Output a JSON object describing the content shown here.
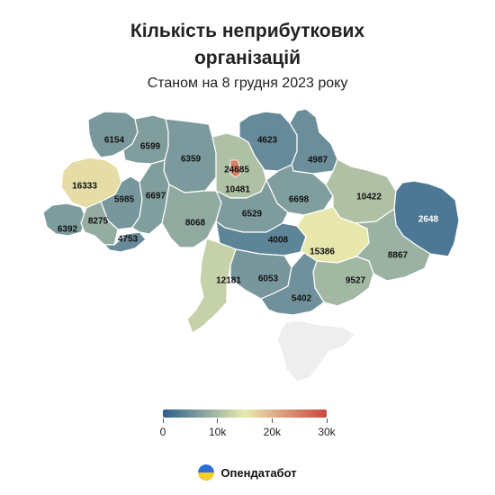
{
  "header": {
    "title_line1": "Кількість неприбуткових",
    "title_line2": "організацій",
    "subtitle": "Станом на 8 грудня 2023 року"
  },
  "legend": {
    "colors": [
      "#2c5f8f",
      "#e8ebaf",
      "#cc4540"
    ],
    "ticks": [
      {
        "label": "0",
        "value": 0
      },
      {
        "label": "10k",
        "value": 10000
      },
      {
        "label": "20k",
        "value": 20000
      },
      {
        "label": "30k",
        "value": 30000
      }
    ]
  },
  "map_data": {
    "metric_max": 30000,
    "no_data_color": "#eeeeee",
    "regions": [
      {
        "id": "volyn",
        "value": 6154,
        "label": "6154"
      },
      {
        "id": "rivne",
        "value": 6599,
        "label": "6599"
      },
      {
        "id": "zhytomyr",
        "value": 6359,
        "label": "6359"
      },
      {
        "id": "kyiv-oblast",
        "value": 10481,
        "label": "10481"
      },
      {
        "id": "kyiv-city",
        "value": 24685,
        "label": "24685"
      },
      {
        "id": "chernihiv",
        "value": 4623,
        "label": "4623"
      },
      {
        "id": "sumy",
        "value": 4987,
        "label": "4987"
      },
      {
        "id": "lviv",
        "value": 16333,
        "label": "16333"
      },
      {
        "id": "ternopil",
        "value": 5985,
        "label": "5985"
      },
      {
        "id": "khmelnytskyi",
        "value": 6697,
        "label": "6697"
      },
      {
        "id": "poltava",
        "value": 6698,
        "label": "6698"
      },
      {
        "id": "kharkiv",
        "value": 10422,
        "label": "10422"
      },
      {
        "id": "luhansk",
        "value": 2648,
        "label": "2648"
      },
      {
        "id": "zakarpattia",
        "value": 6392,
        "label": "6392"
      },
      {
        "id": "ivano-frankivsk",
        "value": 8275,
        "label": "8275"
      },
      {
        "id": "chernivtsi",
        "value": 4753,
        "label": "4753"
      },
      {
        "id": "vinnytsia",
        "value": 8068,
        "label": "8068"
      },
      {
        "id": "cherkasy",
        "value": 6529,
        "label": "6529"
      },
      {
        "id": "kirovohrad",
        "value": 4008,
        "label": "4008"
      },
      {
        "id": "dnipropetrovsk",
        "value": 15386,
        "label": "15386"
      },
      {
        "id": "donetsk",
        "value": 8867,
        "label": "8867"
      },
      {
        "id": "odesa",
        "value": 12181,
        "label": "12181"
      },
      {
        "id": "mykolaiv",
        "value": 6053,
        "label": "6053"
      },
      {
        "id": "zaporizhzhia",
        "value": 9527,
        "label": "9527"
      },
      {
        "id": "kherson",
        "value": 5402,
        "label": "5402"
      },
      {
        "id": "crimea",
        "value": null,
        "label": ""
      }
    ]
  },
  "brand": {
    "name": "Опендатабот",
    "logo_colors": [
      "#2d6fd6",
      "#f5cf2a"
    ]
  }
}
